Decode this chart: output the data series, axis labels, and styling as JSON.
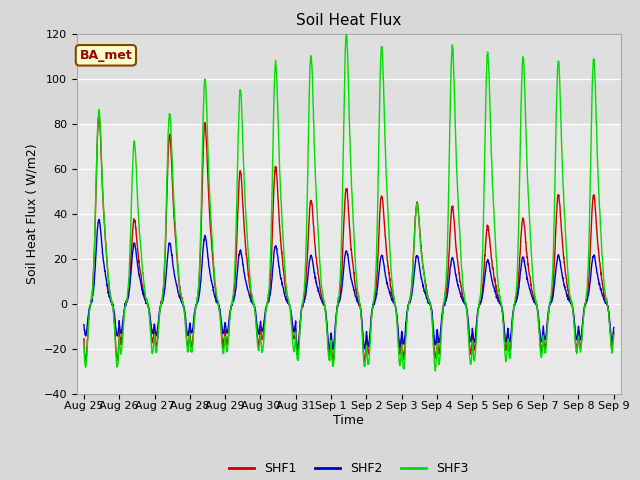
{
  "title": "Soil Heat Flux",
  "xlabel": "Time",
  "ylabel": "Soil Heat Flux ( W/m2)",
  "ylim": [
    -40,
    120
  ],
  "yticks": [
    -40,
    -20,
    0,
    20,
    40,
    60,
    80,
    100,
    120
  ],
  "xtick_labels": [
    "Aug 25",
    "Aug 26",
    "Aug 27",
    "Aug 28",
    "Aug 29",
    "Aug 30",
    "Aug 31",
    "Sep 1",
    "Sep 2",
    "Sep 3",
    "Sep 4",
    "Sep 5",
    "Sep 6",
    "Sep 7",
    "Sep 8",
    "Sep 9"
  ],
  "legend_labels": [
    "SHF1",
    "SHF2",
    "SHF3"
  ],
  "shf1_color": "#cc0000",
  "shf2_color": "#0000cc",
  "shf3_color": "#00dd00",
  "annotation_text": "BA_met",
  "annotation_bg": "#ffffcc",
  "annotation_border": "#884400",
  "fig_bg_color": "#d8d8d8",
  "plot_bg_color": "#e8e8e8",
  "upper_bg_color": "#d8d8d8",
  "grid_color": "#ffffff",
  "title_fontsize": 11,
  "axis_label_fontsize": 9,
  "tick_fontsize": 8,
  "legend_fontsize": 9,
  "day_peaks_shf1": [
    78,
    35,
    70,
    75,
    55,
    57,
    43,
    48,
    45,
    42,
    40,
    32,
    35,
    45,
    45
  ],
  "day_peaks_shf2": [
    35,
    25,
    25,
    28,
    22,
    24,
    20,
    22,
    20,
    20,
    19,
    18,
    19,
    20,
    20
  ],
  "day_peaks_shf3": [
    80,
    67,
    79,
    93,
    89,
    100,
    103,
    112,
    107,
    41,
    107,
    104,
    103,
    101,
    102
  ],
  "night_troughs_shf1": [
    -25,
    -17,
    -19,
    -19,
    -18,
    -16,
    -22,
    -25,
    -22,
    -24,
    -22,
    -20,
    -21,
    -20,
    -19
  ],
  "night_troughs_shf2": [
    -14,
    -13,
    -14,
    -13,
    -13,
    -12,
    -20,
    -20,
    -19,
    -18,
    -17,
    -17,
    -17,
    -16,
    -16
  ],
  "night_troughs_shf3": [
    -28,
    -22,
    -21,
    -22,
    -21,
    -21,
    -25,
    -28,
    -27,
    -29,
    -27,
    -25,
    -24,
    -22,
    -21
  ]
}
